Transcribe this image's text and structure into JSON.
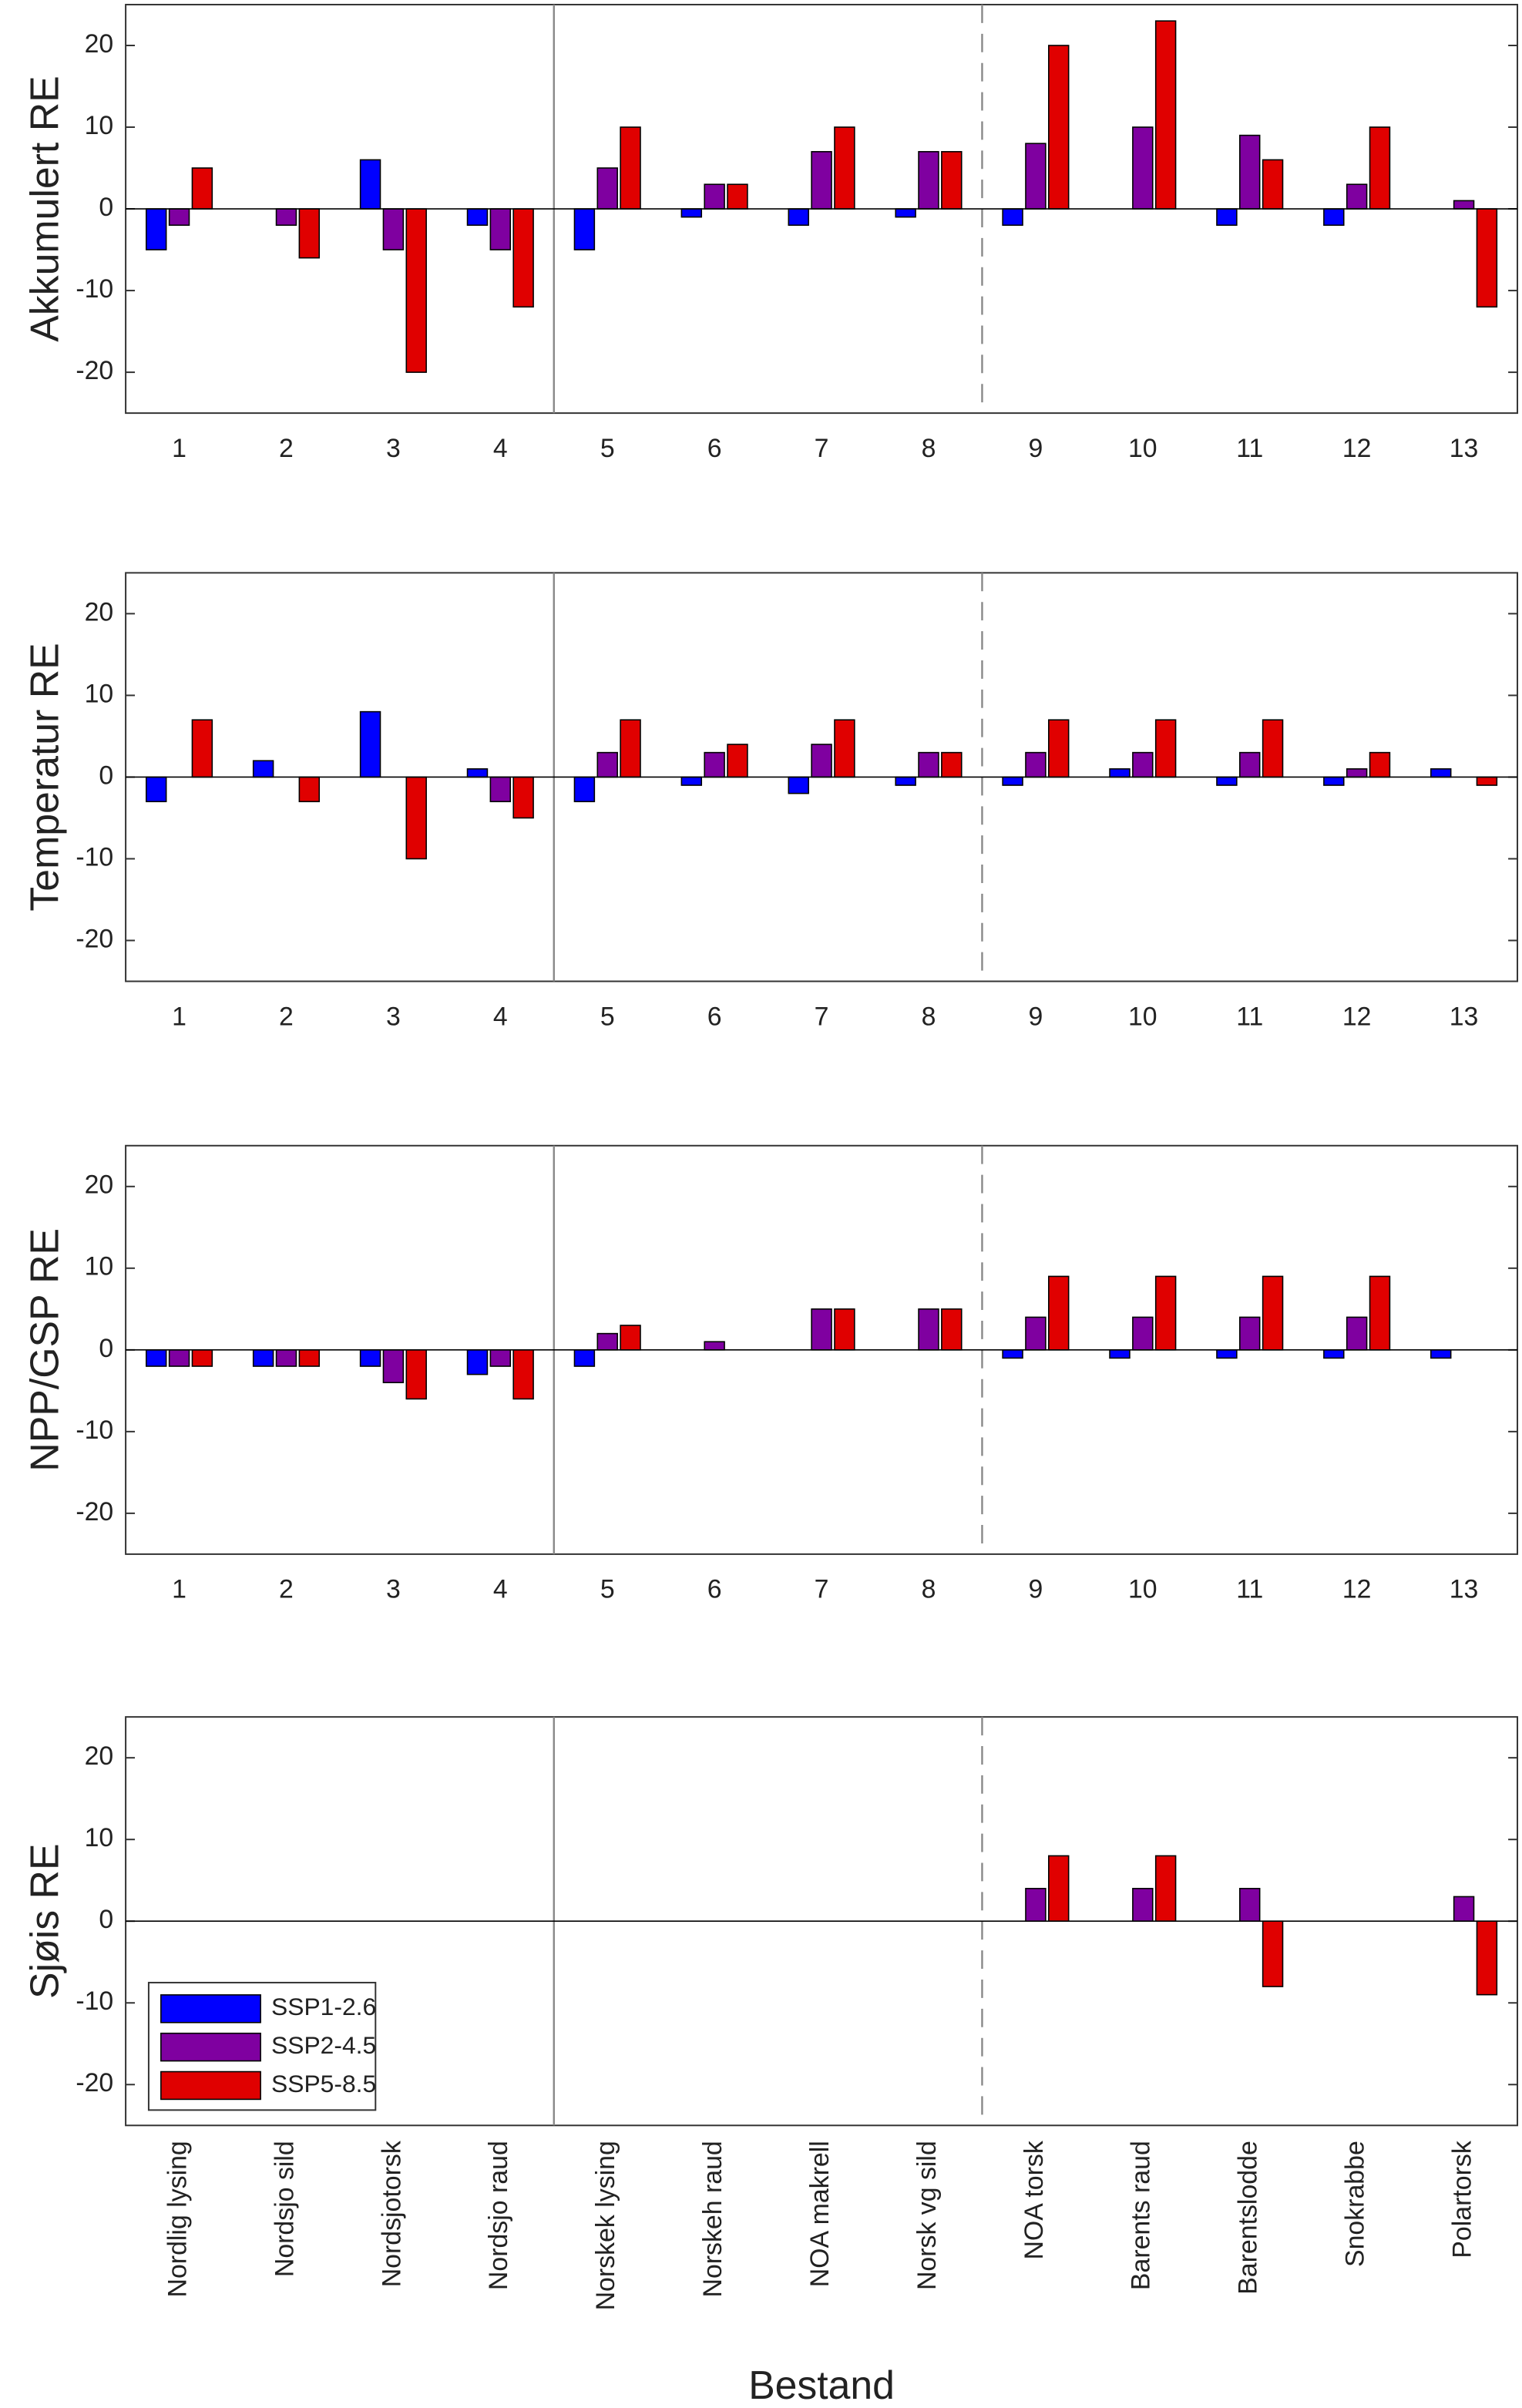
{
  "chart_data": [
    {
      "type": "bar",
      "ylabel": "Akkumulert RE",
      "categories": [
        1,
        2,
        3,
        4,
        5,
        6,
        7,
        8,
        9,
        10,
        11,
        12,
        13
      ],
      "series": [
        {
          "color": "#0000ff",
          "values": [
            -5,
            0,
            6,
            -2,
            -5,
            -1,
            -2,
            -1,
            -2,
            0,
            -2,
            -2,
            0
          ]
        },
        {
          "color": "#7f00a0",
          "values": [
            -2,
            -2,
            -5,
            -5,
            5,
            3,
            7,
            7,
            8,
            10,
            9,
            3,
            1
          ]
        },
        {
          "color": "#e00000",
          "values": [
            5,
            -6,
            -20,
            -12,
            10,
            3,
            10,
            7,
            20,
            23,
            6,
            10,
            -12
          ]
        }
      ],
      "ylim": [
        -25,
        25
      ],
      "yticks": [
        -20,
        -10,
        0,
        10,
        20
      ]
    },
    {
      "type": "bar",
      "ylabel": "Temperatur RE",
      "categories": [
        1,
        2,
        3,
        4,
        5,
        6,
        7,
        8,
        9,
        10,
        11,
        12,
        13
      ],
      "series": [
        {
          "color": "#0000ff",
          "values": [
            -3,
            2,
            8,
            1,
            -3,
            -1,
            -2,
            -1,
            -1,
            1,
            -1,
            -1,
            1
          ]
        },
        {
          "color": "#7f00a0",
          "values": [
            0,
            0,
            0,
            -3,
            3,
            3,
            4,
            3,
            3,
            3,
            3,
            1,
            0
          ]
        },
        {
          "color": "#e00000",
          "values": [
            7,
            -3,
            -10,
            -5,
            7,
            4,
            7,
            3,
            7,
            7,
            7,
            3,
            -1
          ]
        }
      ],
      "ylim": [
        -25,
        25
      ],
      "yticks": [
        -20,
        -10,
        0,
        10,
        20
      ]
    },
    {
      "type": "bar",
      "ylabel": "NPP/GSP RE",
      "categories": [
        1,
        2,
        3,
        4,
        5,
        6,
        7,
        8,
        9,
        10,
        11,
        12,
        13
      ],
      "series": [
        {
          "color": "#0000ff",
          "values": [
            -2,
            -2,
            -2,
            -3,
            -2,
            0,
            0,
            0,
            -1,
            -1,
            -1,
            -1,
            -1
          ]
        },
        {
          "color": "#7f00a0",
          "values": [
            -2,
            -2,
            -4,
            -2,
            2,
            1,
            5,
            5,
            4,
            4,
            4,
            4,
            0
          ]
        },
        {
          "color": "#e00000",
          "values": [
            -2,
            -2,
            -6,
            -6,
            3,
            0,
            5,
            5,
            9,
            9,
            9,
            9,
            0
          ]
        }
      ],
      "ylim": [
        -25,
        25
      ],
      "yticks": [
        -20,
        -10,
        0,
        10,
        20
      ]
    },
    {
      "type": "bar",
      "ylabel": "Sjøis RE",
      "xlabel": "Bestand",
      "categories": [
        "Nordlig lysing",
        "Nordsjo sild",
        "Nordsjotorsk",
        "Nordsjo raud",
        "Norskek lysing",
        "Norskeh raud",
        "NOA makrell",
        "Norsk vg sild",
        "NOA torsk",
        "Barents raud",
        "Barentslodde",
        "Snokrabbe",
        "Polartorsk"
      ],
      "series": [
        {
          "name": "SSP1-2.6",
          "color": "#0000ff",
          "values": [
            0,
            0,
            0,
            0,
            0,
            0,
            0,
            0,
            0,
            0,
            0,
            0,
            0
          ]
        },
        {
          "name": "SSP2-4.5",
          "color": "#7f00a0",
          "values": [
            0,
            0,
            0,
            0,
            0,
            0,
            0,
            0,
            4,
            4,
            4,
            0,
            3
          ]
        },
        {
          "name": "SSP5-8.5",
          "color": "#e00000",
          "values": [
            0,
            0,
            0,
            0,
            0,
            0,
            0,
            0,
            8,
            8,
            -8,
            0,
            -9
          ]
        }
      ],
      "ylim": [
        -25,
        25
      ],
      "yticks": [
        -20,
        -10,
        0,
        10,
        20
      ],
      "legend": "lower left"
    }
  ]
}
